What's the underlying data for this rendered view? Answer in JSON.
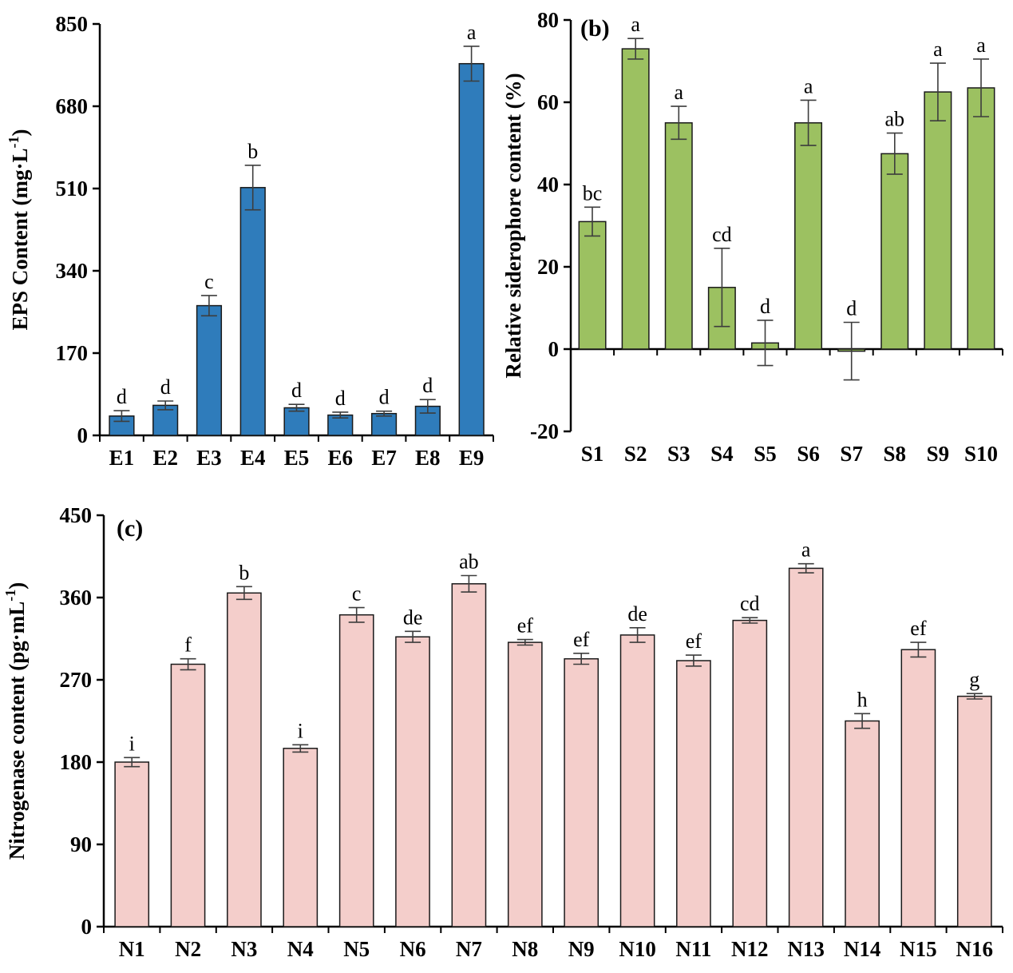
{
  "chart_data": [
    {
      "id": "a",
      "type": "bar",
      "panel_label": "",
      "title": "",
      "xlabel": "",
      "ylabel": "EPS Content (mg·L⁻¹)",
      "ylim": [
        0,
        850
      ],
      "yticks": [
        0,
        170,
        340,
        510,
        680,
        850
      ],
      "grid": false,
      "legend": "none",
      "bar_color": "#2f7cbb",
      "bar_edge_color": "#1a1a1a",
      "categories": [
        "E1",
        "E2",
        "E3",
        "E4",
        "E5",
        "E6",
        "E7",
        "E8",
        "E9"
      ],
      "values": [
        40,
        62,
        268,
        512,
        57,
        42,
        45,
        60,
        768
      ],
      "errors": [
        11,
        9,
        21,
        46,
        7,
        6,
        5,
        14,
        36
      ],
      "letters": [
        "d",
        "d",
        "c",
        "b",
        "d",
        "d",
        "d",
        "d",
        "a"
      ]
    },
    {
      "id": "b",
      "type": "bar",
      "panel_label": "(b)",
      "title": "",
      "xlabel": "",
      "ylabel": "Relative siderophore content (%)",
      "ylim": [
        -20,
        80
      ],
      "yticks": [
        -20,
        0,
        20,
        40,
        60,
        80
      ],
      "grid": false,
      "legend": "none",
      "bar_color": "#9cc161",
      "bar_edge_color": "#1a1a1a",
      "categories": [
        "S1",
        "S2",
        "S3",
        "S4",
        "S5",
        "S6",
        "S7",
        "S8",
        "S9",
        "S10"
      ],
      "values": [
        31,
        73,
        55,
        15,
        1.5,
        55,
        -0.5,
        47.5,
        62.5,
        63.5
      ],
      "errors": [
        3.5,
        2.5,
        4,
        9.5,
        5.5,
        5.5,
        7,
        5,
        7,
        7
      ],
      "letters": [
        "bc",
        "a",
        "a",
        "cd",
        "d",
        "a",
        "d",
        "ab",
        "a",
        "a"
      ]
    },
    {
      "id": "c",
      "type": "bar",
      "panel_label": "(c)",
      "title": "",
      "xlabel": "",
      "ylabel": "Nitrogenase content (pg·mL⁻¹)",
      "ylim": [
        0,
        450
      ],
      "yticks": [
        0,
        90,
        180,
        270,
        360,
        450
      ],
      "grid": false,
      "legend": "none",
      "bar_color": "#f4cecb",
      "bar_edge_color": "#1a1a1a",
      "categories": [
        "N1",
        "N2",
        "N3",
        "N4",
        "N5",
        "N6",
        "N7",
        "N8",
        "N9",
        "N10",
        "N11",
        "N12",
        "N13",
        "N14",
        "N15",
        "N16"
      ],
      "values": [
        180,
        287,
        365,
        195,
        341,
        317,
        375,
        311,
        293,
        319,
        291,
        335,
        392,
        225,
        303,
        252
      ],
      "errors": [
        5,
        6,
        7,
        4,
        8,
        6,
        9,
        3,
        6,
        8,
        6,
        3,
        5,
        8,
        8,
        3
      ],
      "letters": [
        "i",
        "f",
        "b",
        "i",
        "c",
        "de",
        "ab",
        "ef",
        "ef",
        "de",
        "ef",
        "cd",
        "a",
        "h",
        "ef",
        "g"
      ]
    }
  ]
}
